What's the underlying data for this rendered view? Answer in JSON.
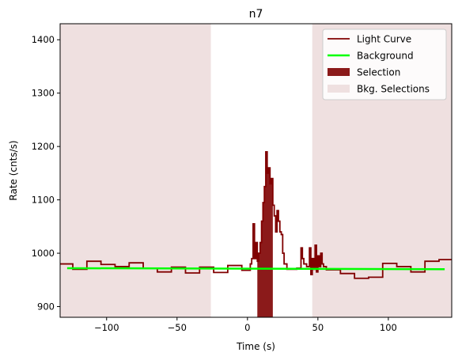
{
  "chart_data": {
    "type": "line",
    "title": "n7",
    "xlabel": "Time (s)",
    "ylabel": "Rate (cnts/s)",
    "xlim": [
      -133,
      145
    ],
    "ylim": [
      880,
      1430
    ],
    "x_ticks": [
      -100,
      -50,
      0,
      50,
      100
    ],
    "x_tick_labels": [
      "−100",
      "−50",
      "0",
      "50",
      "100"
    ],
    "y_ticks": [
      900,
      1000,
      1100,
      1200,
      1300,
      1400
    ],
    "y_tick_labels": [
      "900",
      "1000",
      "1100",
      "1200",
      "1300",
      "1400"
    ],
    "grid": false,
    "legend_position": "top-right",
    "colors": {
      "light_curve": "#800000",
      "background": "#00ff00",
      "selection": "#8b1a1a",
      "bkg_selection": "#efe0e0"
    },
    "series": [
      {
        "name": "Light Curve",
        "style": "step",
        "points": [
          [
            -133,
            980
          ],
          [
            -124,
            970
          ],
          [
            -114,
            985
          ],
          [
            -104,
            979
          ],
          [
            -94,
            975
          ],
          [
            -84,
            982
          ],
          [
            -74,
            972
          ],
          [
            -64,
            965
          ],
          [
            -54,
            974
          ],
          [
            -44,
            963
          ],
          [
            -34,
            974
          ],
          [
            -24,
            964
          ],
          [
            -14,
            977
          ],
          [
            -4,
            968
          ],
          [
            2,
            980
          ],
          [
            3,
            990
          ],
          [
            4,
            1055
          ],
          [
            5,
            990
          ],
          [
            6,
            1020
          ],
          [
            7,
            985
          ],
          [
            8,
            1000
          ],
          [
            9,
            1020
          ],
          [
            10,
            1060
          ],
          [
            11,
            1095
          ],
          [
            12,
            1125
          ],
          [
            13,
            1190
          ],
          [
            14,
            1150
          ],
          [
            15,
            1160
          ],
          [
            16,
            1130
          ],
          [
            17,
            1140
          ],
          [
            18,
            1090
          ],
          [
            19,
            1070
          ],
          [
            20,
            1040
          ],
          [
            21,
            1080
          ],
          [
            22,
            1060
          ],
          [
            23,
            1040
          ],
          [
            24,
            1035
          ],
          [
            25,
            1000
          ],
          [
            26,
            980
          ],
          [
            28,
            970
          ],
          [
            35,
            972
          ],
          [
            38,
            1010
          ],
          [
            39,
            990
          ],
          [
            40,
            980
          ],
          [
            42,
            975
          ],
          [
            44,
            1010
          ],
          [
            45,
            960
          ],
          [
            46,
            990
          ],
          [
            47,
            970
          ],
          [
            48,
            1015
          ],
          [
            49,
            965
          ],
          [
            50,
            995
          ],
          [
            51,
            975
          ],
          [
            52,
            1000
          ],
          [
            53,
            980
          ],
          [
            54,
            975
          ],
          [
            56,
            969
          ],
          [
            66,
            962
          ],
          [
            76,
            953
          ],
          [
            86,
            955
          ],
          [
            96,
            981
          ],
          [
            106,
            975
          ],
          [
            116,
            965
          ],
          [
            126,
            985
          ],
          [
            136,
            988
          ],
          [
            145,
            988
          ]
        ]
      },
      {
        "name": "Background",
        "style": "line",
        "points": [
          [
            -128,
            972
          ],
          [
            140,
            970
          ]
        ]
      }
    ],
    "regions": [
      {
        "name": "Selection",
        "ranges": [
          [
            7,
            18
          ]
        ]
      },
      {
        "name": "Bkg. Selections",
        "ranges": [
          [
            -133,
            -26
          ],
          [
            46,
            145
          ]
        ]
      }
    ]
  }
}
